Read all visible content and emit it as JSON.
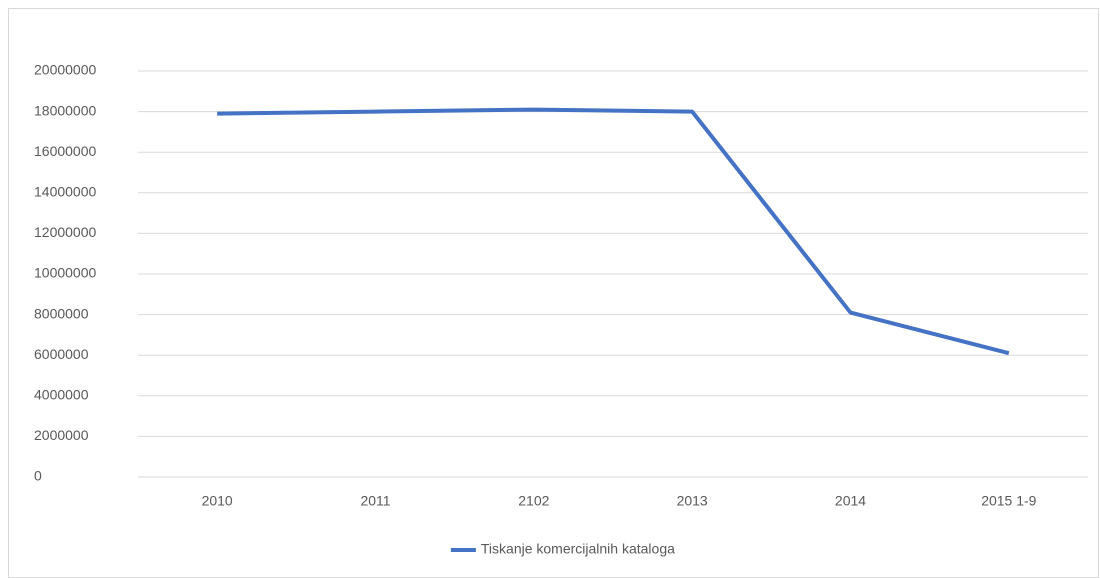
{
  "chart_data": {
    "type": "line",
    "categories": [
      "2010",
      "2011",
      "2102",
      "2013",
      "2014",
      "2015 1-9"
    ],
    "series": [
      {
        "name": "Tiskanje komercijalnih kataloga",
        "color": "#4472c4",
        "values": [
          17900000,
          18000000,
          18100000,
          18000000,
          8100000,
          6100000
        ]
      }
    ],
    "ylim": [
      0,
      20000000
    ],
    "yticks": [
      0,
      2000000,
      4000000,
      6000000,
      8000000,
      10000000,
      12000000,
      14000000,
      16000000,
      18000000,
      20000000
    ],
    "grid": true,
    "legend": "bottom"
  }
}
